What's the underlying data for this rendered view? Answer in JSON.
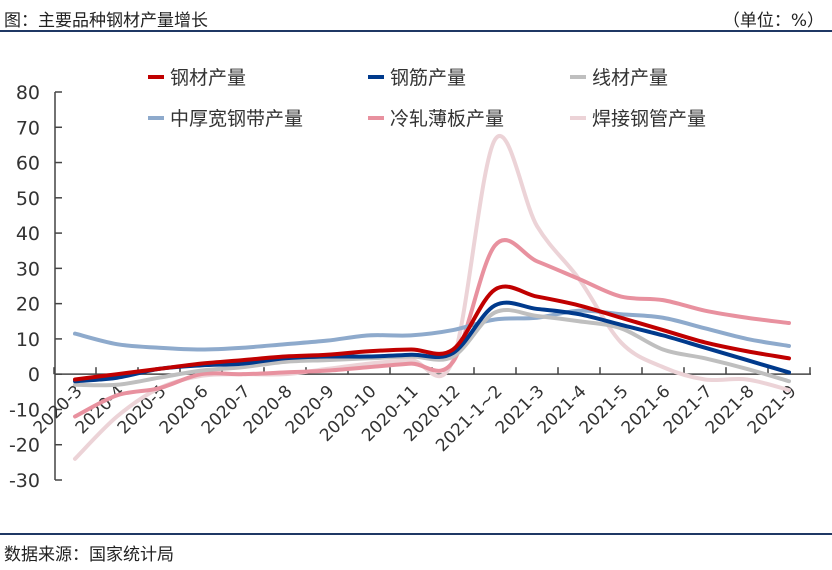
{
  "header": {
    "title": "图：主要品种钢材产量增长",
    "unit": "（单位：%）"
  },
  "footer": {
    "source": "数据来源：国家统计局"
  },
  "chart_data": {
    "type": "line",
    "title": "主要品种钢材产量增长",
    "unit": "%",
    "ylim": [
      -30,
      80
    ],
    "yticks": [
      -30,
      -20,
      -10,
      0,
      10,
      20,
      30,
      40,
      50,
      60,
      70,
      80
    ],
    "grid": false,
    "legend_position": "top",
    "categories": [
      "2020-3",
      "2020-4",
      "2020-5",
      "2020-6",
      "2020-7",
      "2020-8",
      "2020-9",
      "2020-10",
      "2020-11",
      "2020-12",
      "2021-1~2",
      "2021-3",
      "2021-4",
      "2021-5",
      "2021-6",
      "2021-7",
      "2021-8",
      "2021-9"
    ],
    "series": [
      {
        "name": "钢材产量",
        "color": "#c00000",
        "values": [
          -1.5,
          0,
          1.5,
          3,
          4,
          5,
          5.5,
          6.5,
          7,
          7,
          24,
          22,
          19.5,
          16,
          12.5,
          9,
          6.5,
          4.5
        ]
      },
      {
        "name": "钢筋产量",
        "color": "#003a8c",
        "values": [
          -2,
          -1,
          1.5,
          2.5,
          3,
          4.5,
          5,
          5,
          5.5,
          6,
          19.5,
          18.5,
          17,
          14,
          11,
          7.5,
          4,
          0.5
        ]
      },
      {
        "name": "线材产量",
        "color": "#bfbfbf",
        "values": [
          -3,
          -3,
          -1,
          1,
          2,
          3.5,
          4,
          4.5,
          5,
          5,
          17.5,
          16.5,
          15,
          13,
          7,
          4.5,
          1.5,
          -2
        ]
      },
      {
        "name": "中厚宽钢带产量",
        "color": "#8eaacc",
        "values": [
          11.5,
          8.5,
          7.5,
          7,
          7.5,
          8.5,
          9.5,
          11,
          11,
          12.5,
          15.5,
          16,
          18,
          17,
          16,
          13,
          10,
          8
        ]
      },
      {
        "name": "冷轧薄板产量",
        "color": "#e8919f",
        "values": [
          -12,
          -6,
          -4,
          0,
          0,
          0.5,
          1,
          2,
          3,
          3.5,
          36.5,
          32,
          27,
          22,
          21,
          18,
          16,
          14.5
        ]
      },
      {
        "name": "焊接钢管产量",
        "color": "#ecd3d7",
        "values": [
          -24,
          -12,
          -4,
          -0.5,
          0,
          0,
          1.5,
          3,
          4,
          4,
          66.5,
          42,
          27,
          9,
          2,
          -1.5,
          -1.5,
          -4.5
        ]
      }
    ]
  }
}
